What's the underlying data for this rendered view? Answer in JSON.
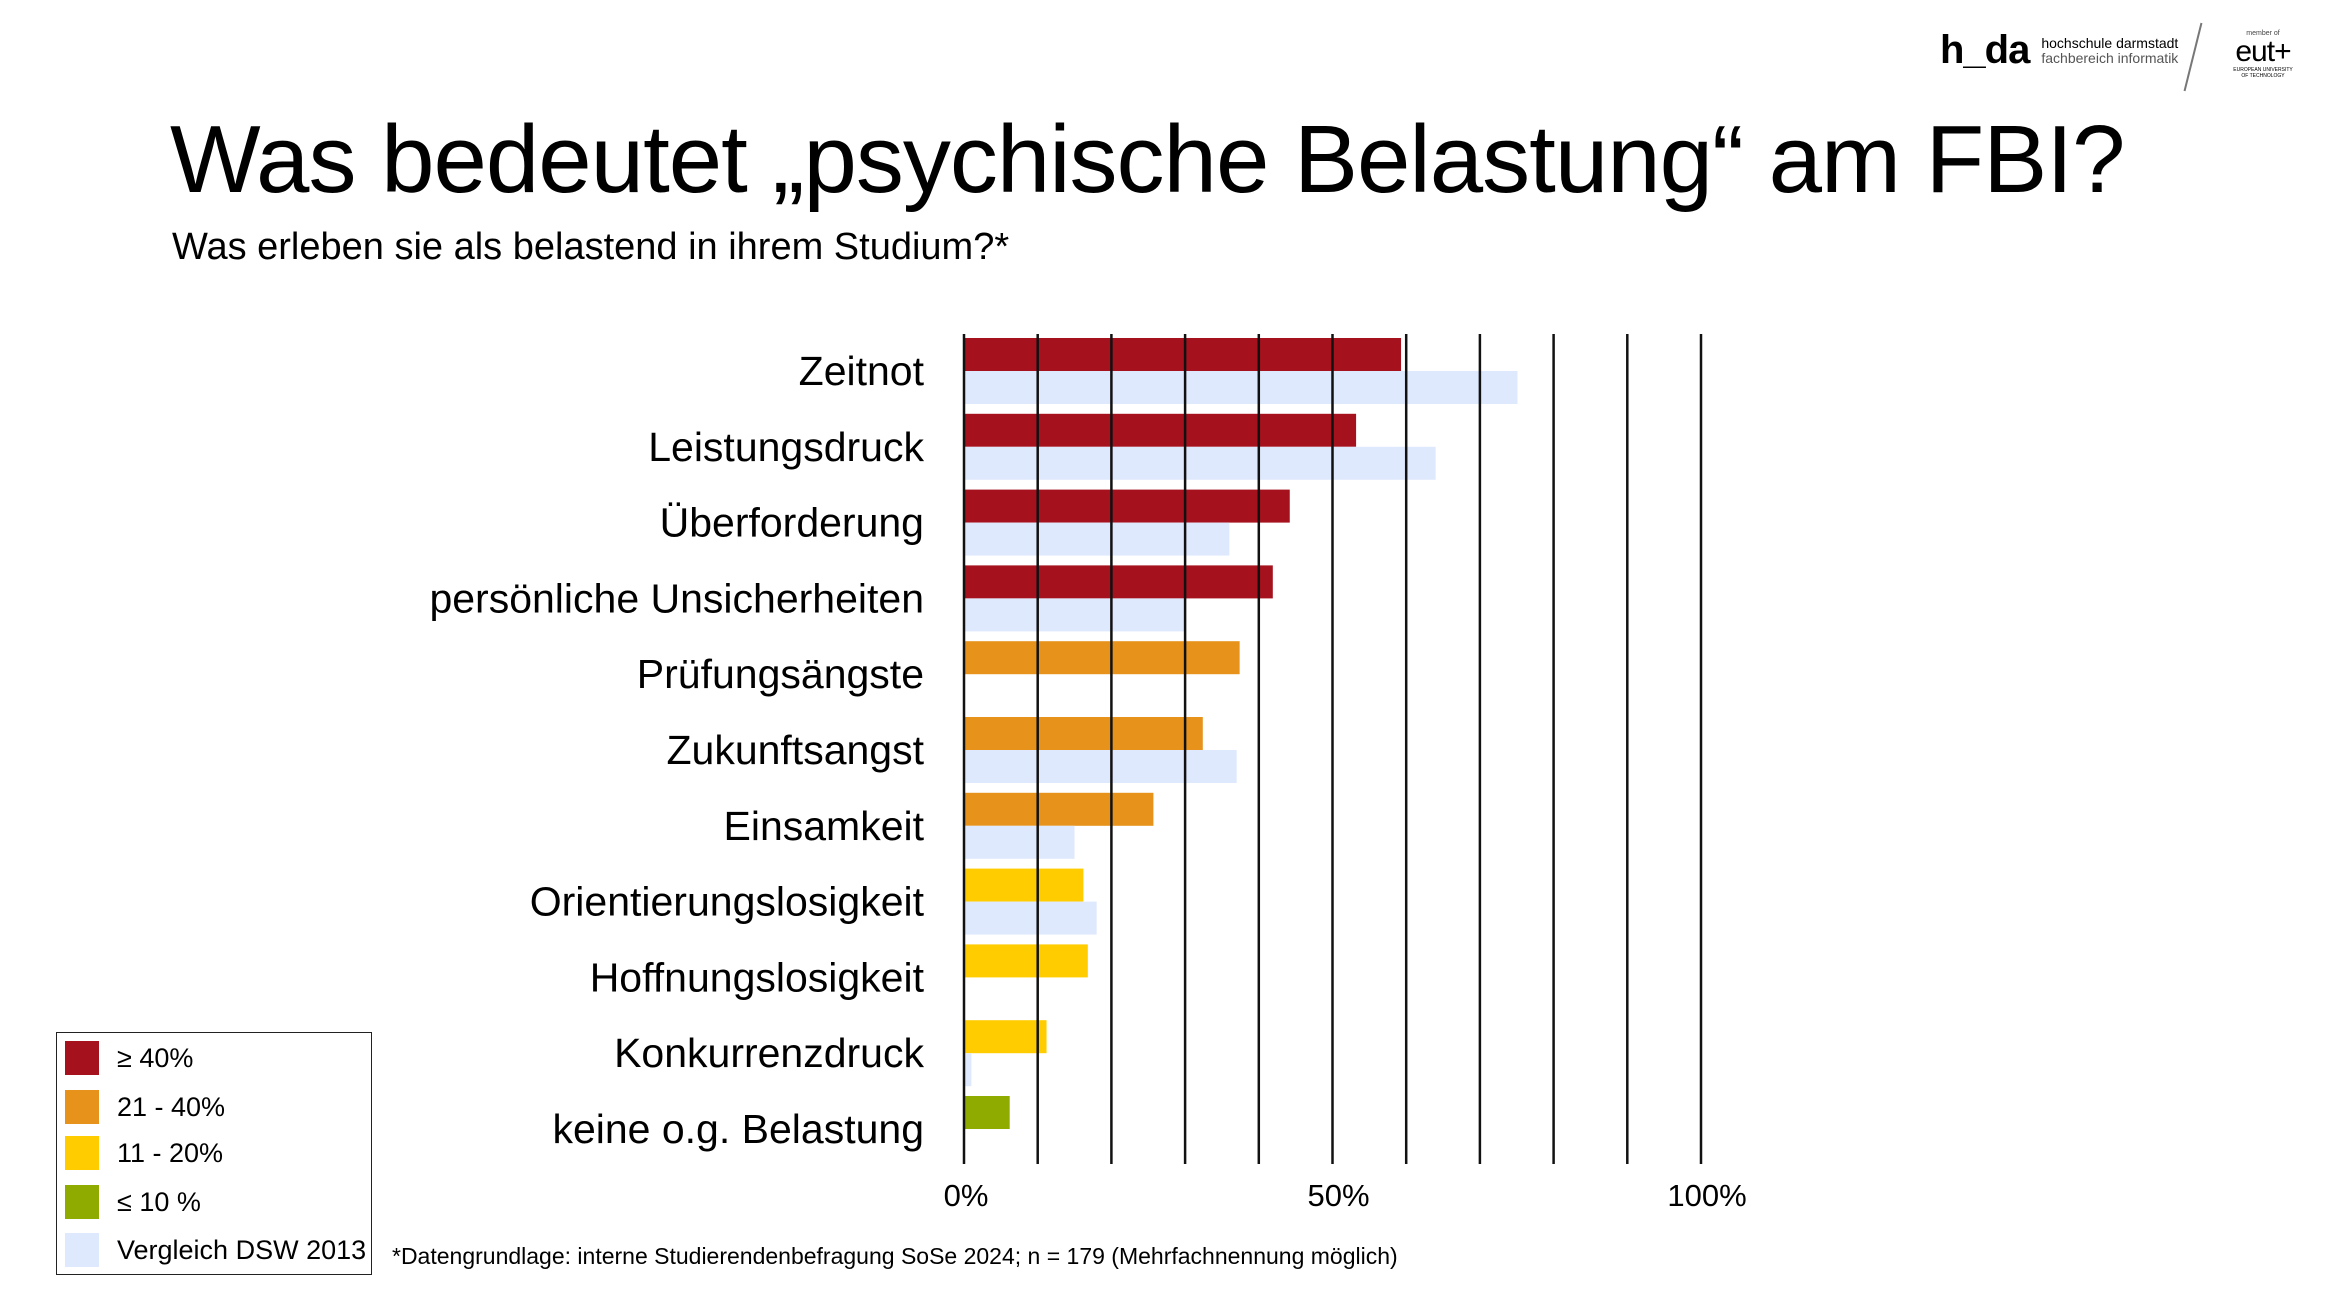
{
  "header": {
    "logo_main": "h_da",
    "logo_line1": "hochschule darmstadt",
    "logo_line2": "fachbereich informatik",
    "partner_member": "member of",
    "partner_logo": "eut+",
    "partner_line1": "EUROPEAN UNIVERSITY",
    "partner_line2": "OF TECHNOLOGY"
  },
  "title": "Was bedeutet „psychische Belastung“ am FBI?",
  "subtitle": "Was erleben sie als belastend in ihrem Studium?*",
  "footnote": "*Datengrundlage: interne Studierendenbefragung SoSe 2024; n = 179 (Mehrfachnennung möglich)",
  "legend": [
    {
      "label": "≥ 40%",
      "color": "#a5111d"
    },
    {
      "label": "21 - 40%",
      "color": "#e6921b"
    },
    {
      "label": "11 - 20%",
      "color": "#ffcc00"
    },
    {
      "label": "≤ 10 %",
      "color": "#8fab00"
    },
    {
      "label": "Vergleich DSW 2013",
      "color": "#dfe9fd"
    }
  ],
  "chart_data": {
    "type": "bar",
    "orientation": "horizontal",
    "categories": [
      "Zeitnot",
      "Leistungsdruck",
      "Überforderung",
      "persönliche Unsicherheiten",
      "Prüfungsängste",
      "Zukunftsangst",
      "Einsamkeit",
      "Orientierungslosigkeit",
      "Hoffnungslosigkeit",
      "Konkurrenzdruck",
      "keine o.g. Belastung"
    ],
    "series": [
      {
        "name": "FBI SoSe 2024",
        "values": [
          59.3,
          53.2,
          44.2,
          41.9,
          37.4,
          32.4,
          25.7,
          16.2,
          16.8,
          11.2,
          6.2
        ],
        "colors": [
          "#a5111d",
          "#a5111d",
          "#a5111d",
          "#a5111d",
          "#e6921b",
          "#e6921b",
          "#e6921b",
          "#ffcc00",
          "#ffcc00",
          "#ffcc00",
          "#8fab00"
        ]
      },
      {
        "name": "Vergleich DSW 2013",
        "values": [
          75.1,
          64.0,
          36.0,
          30.1,
          null,
          37.0,
          15.0,
          18.0,
          null,
          1.0,
          null
        ],
        "color": "#dfe9fd"
      }
    ],
    "xlim": [
      0,
      100
    ],
    "grid_step": 10,
    "tick_labels": [
      "0%",
      "50%",
      "100%"
    ],
    "tick_values": [
      0,
      50,
      100
    ],
    "grid": true
  }
}
